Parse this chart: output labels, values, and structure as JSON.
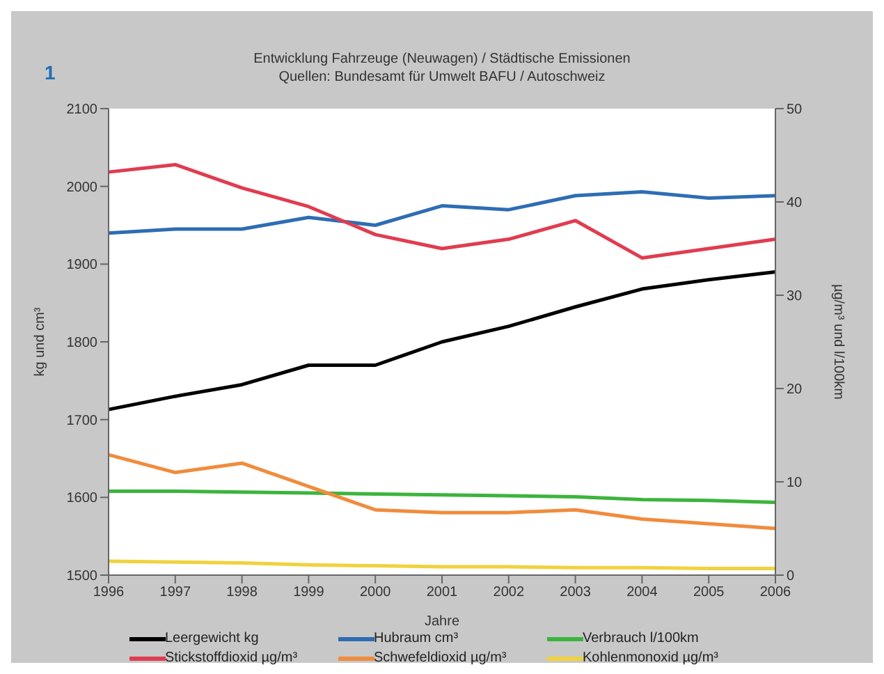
{
  "chart_data": {
    "type": "line",
    "title": "Entwicklung Fahrzeuge (Neuwagen) / Städtische Emissionen",
    "subtitle": "Quellen: Bundesamt für Umwelt BAFU / Autoschweiz",
    "annotations": [
      "1"
    ],
    "xlabel": "Jahre",
    "ylabel": "kg und cm³",
    "y2label": "µg/m³ und l/100km",
    "categories": [
      "1996",
      "1997",
      "1998",
      "1999",
      "2000",
      "2001",
      "2002",
      "2003",
      "2004",
      "2005",
      "2006"
    ],
    "ylim": [
      1500,
      2100
    ],
    "yticks": [
      1500,
      1600,
      1700,
      1800,
      1900,
      2000,
      2100
    ],
    "y2lim": [
      0,
      50
    ],
    "y2ticks": [
      0,
      10,
      20,
      30,
      40,
      50
    ],
    "grid": false,
    "legend": "bottom",
    "marker": "none",
    "line_style": "solid",
    "series": [
      {
        "name": "Leergewicht kg",
        "color": "#000000",
        "values": [
          1713,
          1730,
          1745,
          1770,
          1770,
          1800,
          1820,
          1845,
          1868,
          1880,
          1890
        ]
      },
      {
        "name": "Hubraum cm³",
        "color": "#2e6db4",
        "values": [
          1940,
          1945,
          1945,
          1960,
          1950,
          1975,
          1970,
          1988,
          1993,
          1985,
          1988
        ]
      },
      {
        "name": "Verbrauch l/100km",
        "color": "#3cb43c",
        "axis": "y2",
        "values": [
          9,
          9,
          8.9,
          8.8,
          8.7,
          8.6,
          8.5,
          8.4,
          8.1,
          8,
          7.8
        ]
      },
      {
        "name": "Stickstoffdioxid µg/m³",
        "color": "#e03c50",
        "axis": "y2",
        "values": [
          43.2,
          44,
          41.5,
          39.5,
          36.5,
          35,
          36,
          38,
          34,
          35,
          36
        ]
      },
      {
        "name": "Schwefeldioxid µg/m³",
        "color": "#f08c3c",
        "axis": "y2",
        "values": [
          12.9,
          11,
          12,
          9.5,
          7,
          6.7,
          6.7,
          7,
          6,
          5.5,
          5
        ]
      },
      {
        "name": "Kohlenmonoxid µg/m³",
        "color": "#f0d23c",
        "axis": "y2",
        "values": [
          1.5,
          1.4,
          1.3,
          1.1,
          1,
          0.9,
          0.9,
          0.8,
          0.8,
          0.7,
          0.7
        ]
      }
    ]
  }
}
